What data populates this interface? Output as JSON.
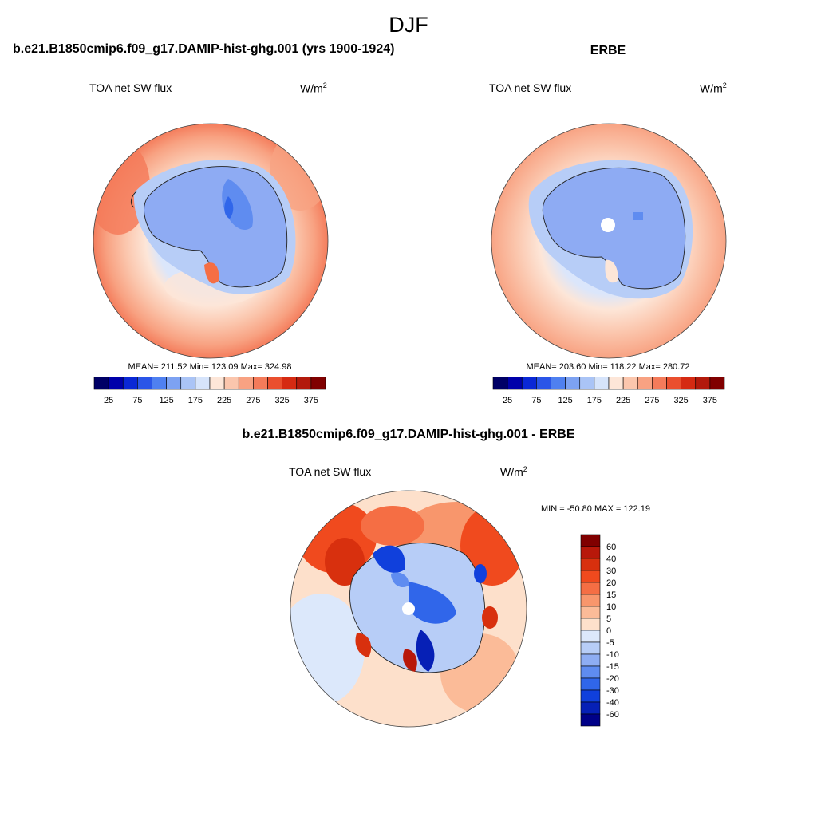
{
  "figure": {
    "title": "DJF"
  },
  "panels": {
    "model": {
      "title": "b.e21.B1850cmip6.f09_g17.DAMIP-hist-ghg.001 (yrs 1900-1924)",
      "variable": "TOA net SW flux",
      "units": "W/m",
      "units_exp": "2",
      "stats": "MEAN= 211.52  Min= 123.09  Max= 324.98"
    },
    "obs": {
      "title": "ERBE",
      "variable": "TOA net SW flux",
      "units": "W/m",
      "units_exp": "2",
      "stats": "MEAN= 203.60  Min= 118.22  Max= 280.72"
    },
    "diff": {
      "title": "b.e21.B1850cmip6.f09_g17.DAMIP-hist-ghg.001 - ERBE",
      "variable": "TOA net SW flux",
      "units": "W/m",
      "units_exp": "2",
      "stats": "MIN = -50.80 MAX = 122.19"
    }
  },
  "colorbars": {
    "main": {
      "labels": [
        "25",
        "75",
        "125",
        "175",
        "225",
        "275",
        "325",
        "375"
      ],
      "colors": [
        "#000066",
        "#0000aa",
        "#0a28d6",
        "#2a55e8",
        "#4f80f0",
        "#7da2f2",
        "#aac4f6",
        "#d6e4fb",
        "#fde6d8",
        "#fbc6ad",
        "#f8a282",
        "#f47b5a",
        "#ea4f2e",
        "#d52a12",
        "#b31a0c",
        "#800000"
      ]
    },
    "diff": {
      "labels": [
        "60",
        "40",
        "30",
        "20",
        "15",
        "10",
        "5",
        "0",
        "-5",
        "-10",
        "-15",
        "-20",
        "-30",
        "-40",
        "-60"
      ],
      "colors": [
        "#800000",
        "#b8180a",
        "#d8300e",
        "#f04a1e",
        "#f56e44",
        "#f8966c",
        "#fbbb98",
        "#fde0cb",
        "#dce8fb",
        "#b7cdf7",
        "#8ead f3",
        "#5f8cf0",
        "#3066ea",
        "#1040dc",
        "#0620b6",
        "#000088"
      ]
    }
  }
}
